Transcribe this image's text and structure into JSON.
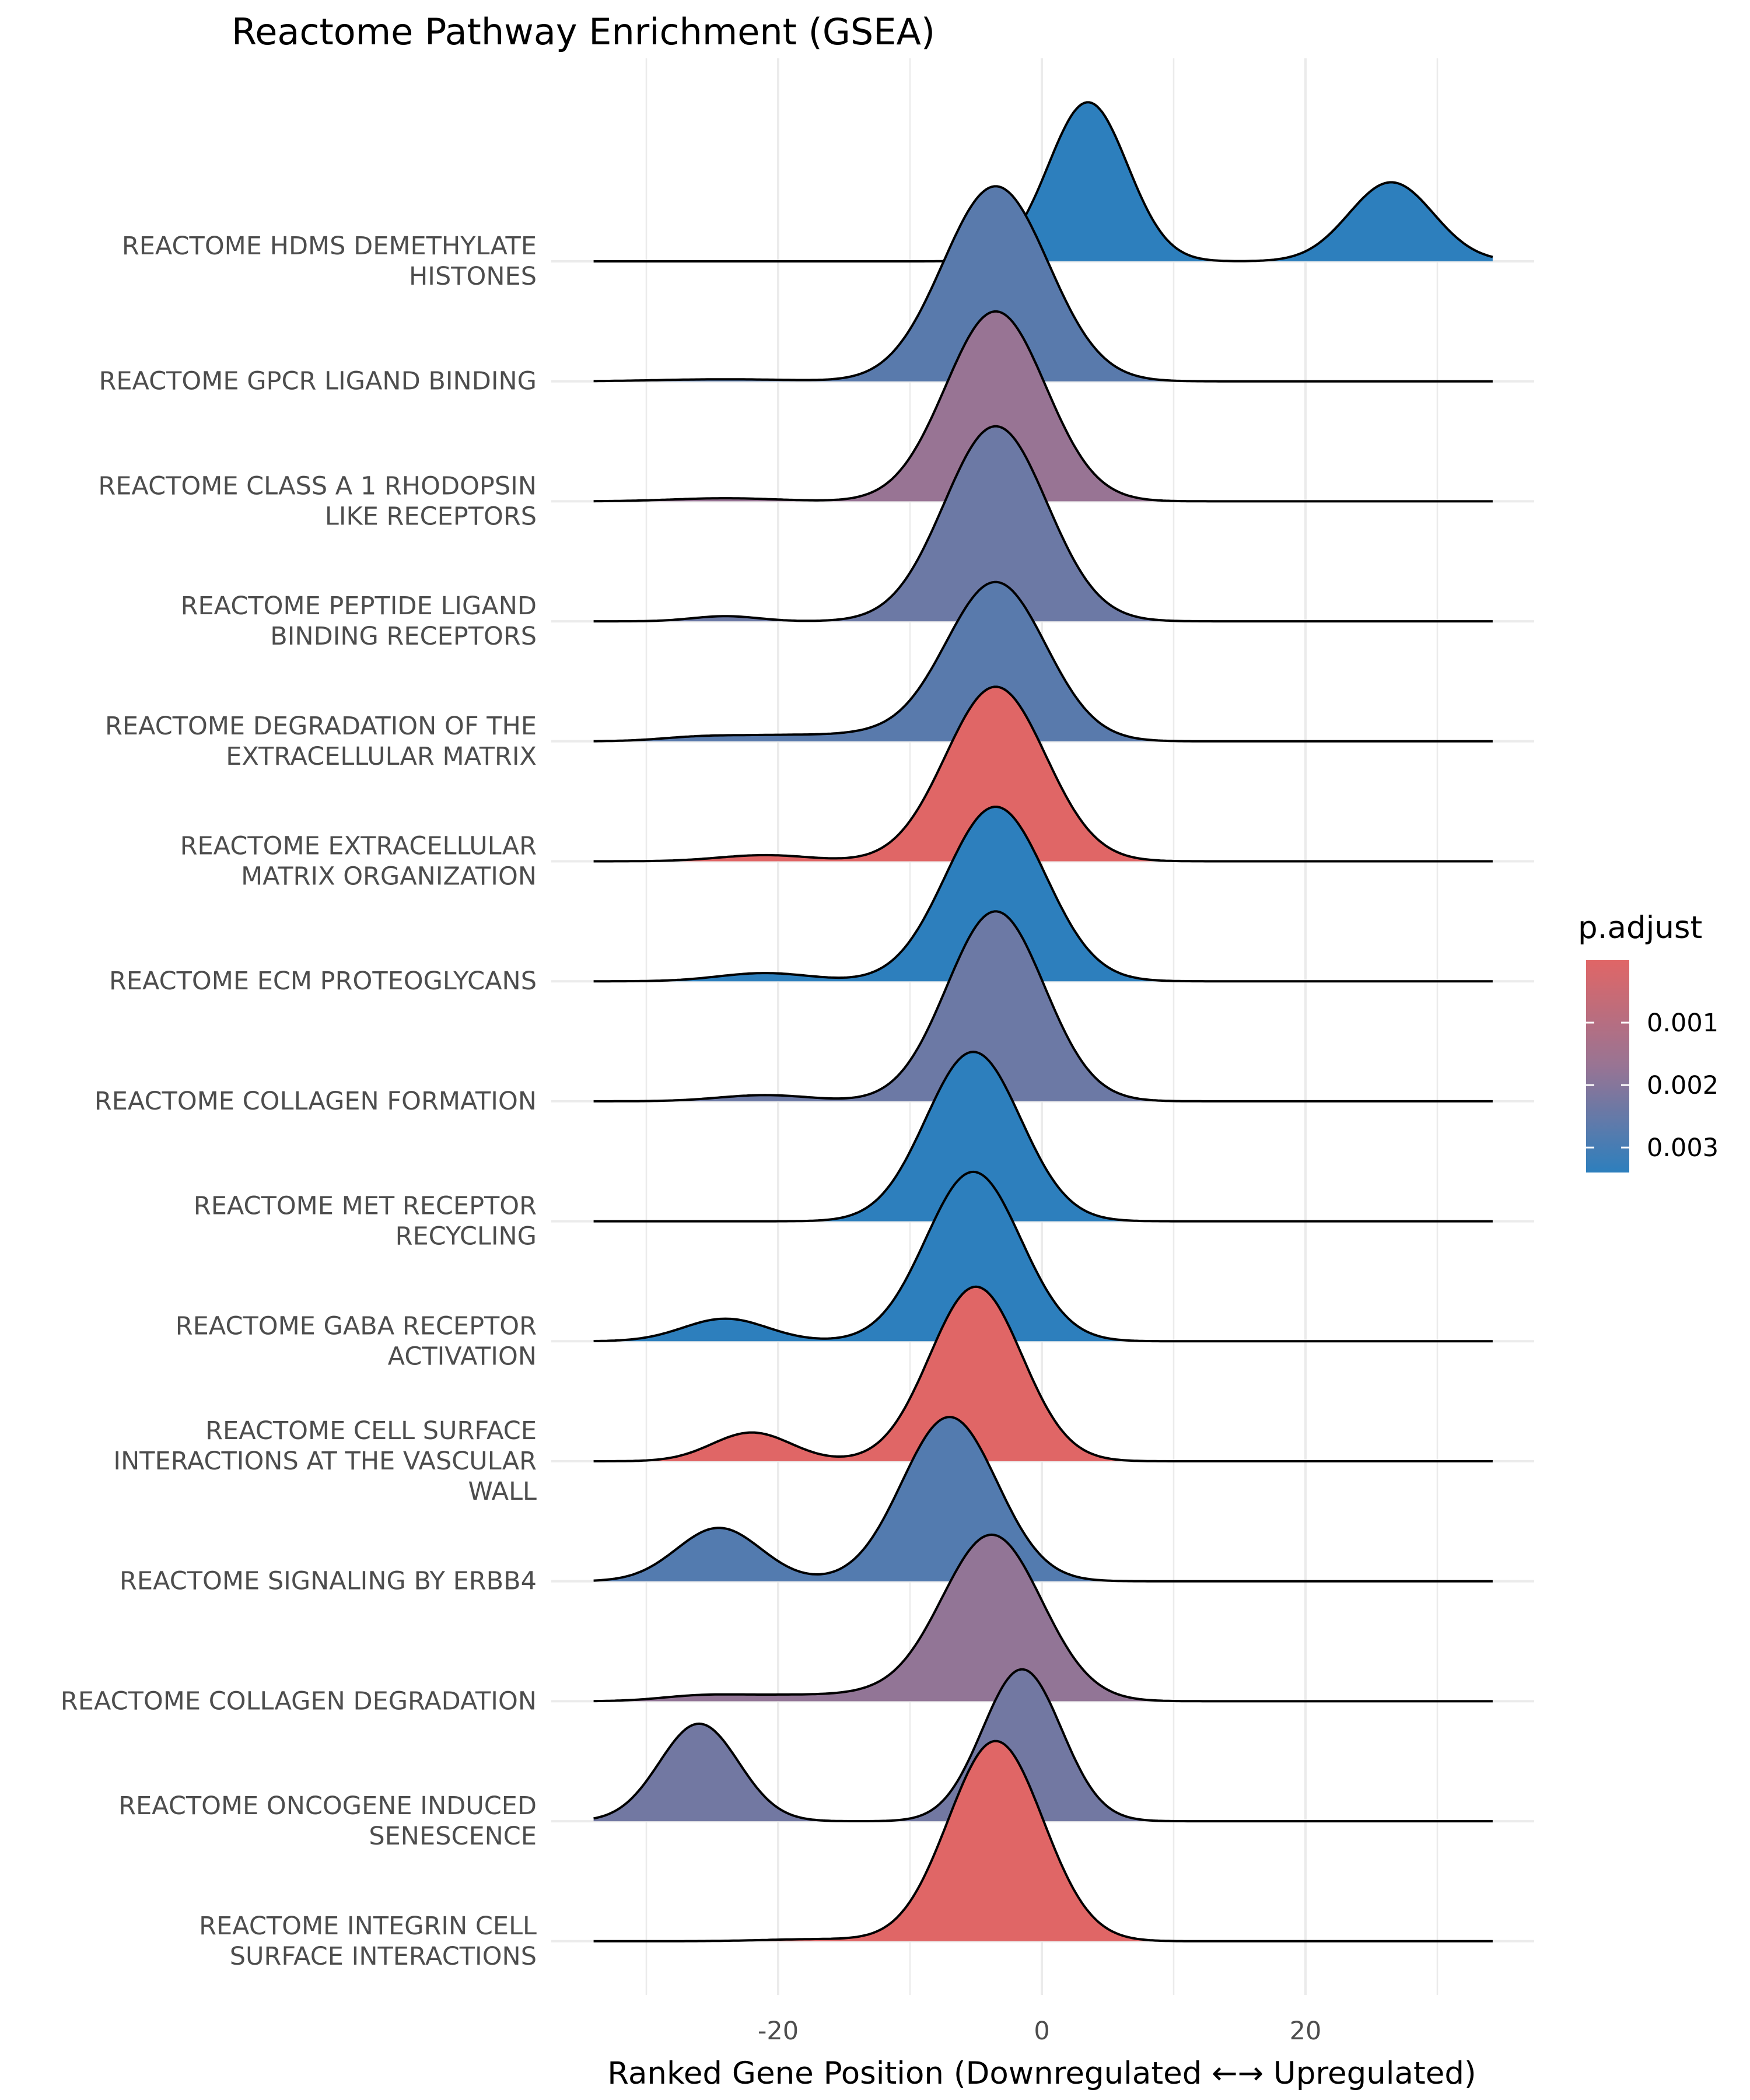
{
  "chart_data": {
    "type": "ridgeline",
    "title": "Reactome Pathway Enrichment (GSEA)",
    "xlabel": "Ranked Gene Position (Downregulated ←→ Upregulated)",
    "ylabel": "",
    "xlim": [
      -39,
      40
    ],
    "x_ticks": [
      -20,
      0,
      20
    ],
    "x_tick_labels": [
      "-20",
      "0",
      "20"
    ],
    "grid": true,
    "legend": {
      "title": "p.adjust",
      "placement": "right",
      "domain": [
        0.0,
        0.0034
      ],
      "ticks": [
        0.001,
        0.002,
        0.003
      ],
      "tick_labels": [
        "0.001",
        "0.002",
        "0.003"
      ],
      "color_low": "#e06666",
      "color_high": "#2d7fbd"
    },
    "series": [
      {
        "label": "REACTOME HDMS DEMETHYLATE HISTONES",
        "label_lines": [
          "REACTOME HDMS DEMETHYLATE",
          "HISTONES"
        ],
        "p_adjust": 0.0034,
        "components": [
          {
            "mu": 3.5,
            "sd": 3.0,
            "h": 1.55
          },
          {
            "mu": 26.5,
            "sd": 3.2,
            "h": 0.77
          }
        ]
      },
      {
        "label": "REACTOME GPCR LIGAND BINDING",
        "label_lines": [
          "REACTOME GPCR LIGAND BINDING"
        ],
        "p_adjust": 0.0027,
        "components": [
          {
            "mu": -3.5,
            "sd": 4.0,
            "h": 1.9
          },
          {
            "mu": -24,
            "sd": 5.0,
            "h": 0.02
          }
        ]
      },
      {
        "label": "REACTOME CLASS A 1 RHODOPSIN LIKE RECEPTORS",
        "label_lines": [
          "REACTOME CLASS A 1 RHODOPSIN",
          "LIKE RECEPTORS"
        ],
        "p_adjust": 0.0017,
        "components": [
          {
            "mu": -3.5,
            "sd": 3.8,
            "h": 1.85
          },
          {
            "mu": -24,
            "sd": 4.0,
            "h": 0.03
          }
        ]
      },
      {
        "label": "REACTOME PEPTIDE LIGAND BINDING RECEPTORS",
        "label_lines": [
          "REACTOME PEPTIDE LIGAND",
          "BINDING RECEPTORS"
        ],
        "p_adjust": 0.0024,
        "components": [
          {
            "mu": -3.5,
            "sd": 3.9,
            "h": 1.9
          },
          {
            "mu": -24,
            "sd": 2.5,
            "h": 0.05
          }
        ]
      },
      {
        "label": "REACTOME DEGRADATION OF THE EXTRACELLULAR MATRIX",
        "label_lines": [
          "REACTOME DEGRADATION OF THE",
          "EXTRACELLULAR MATRIX"
        ],
        "p_adjust": 0.0027,
        "components": [
          {
            "mu": -3.5,
            "sd": 3.8,
            "h": 1.55
          },
          {
            "mu": -13,
            "sd": 3.5,
            "h": 0.06
          },
          {
            "mu": -20,
            "sd": 3.5,
            "h": 0.05
          },
          {
            "mu": -26,
            "sd": 3.0,
            "h": 0.04
          }
        ]
      },
      {
        "label": "REACTOME EXTRACELLULAR MATRIX ORGANIZATION",
        "label_lines": [
          "REACTOME EXTRACELLULAR",
          "MATRIX ORGANIZATION"
        ],
        "p_adjust": 0.0,
        "components": [
          {
            "mu": -3.5,
            "sd": 3.8,
            "h": 1.7
          },
          {
            "mu": -21,
            "sd": 3.5,
            "h": 0.06
          }
        ]
      },
      {
        "label": "REACTOME ECM PROTEOGLYCANS",
        "label_lines": [
          "REACTOME ECM PROTEOGLYCANS"
        ],
        "p_adjust": 0.0034,
        "components": [
          {
            "mu": -3.5,
            "sd": 3.8,
            "h": 1.7
          },
          {
            "mu": -21,
            "sd": 3.5,
            "h": 0.08
          }
        ]
      },
      {
        "label": "REACTOME COLLAGEN FORMATION",
        "label_lines": [
          "REACTOME COLLAGEN FORMATION"
        ],
        "p_adjust": 0.0024,
        "components": [
          {
            "mu": -3.5,
            "sd": 3.7,
            "h": 1.85
          },
          {
            "mu": -21,
            "sd": 3.5,
            "h": 0.06
          }
        ]
      },
      {
        "label": "REACTOME MET RECEPTOR RECYCLING",
        "label_lines": [
          "REACTOME MET RECEPTOR",
          "RECYCLING"
        ],
        "p_adjust": 0.0034,
        "components": [
          {
            "mu": -5.2,
            "sd": 3.6,
            "h": 1.65
          }
        ]
      },
      {
        "label": "REACTOME GABA RECEPTOR ACTIVATION",
        "label_lines": [
          "REACTOME GABA RECEPTOR",
          "ACTIVATION"
        ],
        "p_adjust": 0.0034,
        "components": [
          {
            "mu": -5.2,
            "sd": 3.6,
            "h": 1.65
          },
          {
            "mu": -24,
            "sd": 3.2,
            "h": 0.22
          }
        ]
      },
      {
        "label": "REACTOME CELL SURFACE INTERACTIONS AT THE VASCULAR WALL",
        "label_lines": [
          "REACTOME CELL SURFACE",
          "INTERACTIONS AT THE VASCULAR",
          "WALL"
        ],
        "p_adjust": 0.0,
        "components": [
          {
            "mu": -5.0,
            "sd": 3.5,
            "h": 1.7
          },
          {
            "mu": -22,
            "sd": 3.0,
            "h": 0.28
          }
        ]
      },
      {
        "label": "REACTOME SIGNALING BY ERBB4",
        "label_lines": [
          "REACTOME SIGNALING BY ERBB4"
        ],
        "p_adjust": 0.0028,
        "components": [
          {
            "mu": -7.0,
            "sd": 3.6,
            "h": 1.6
          },
          {
            "mu": -24.5,
            "sd": 3.2,
            "h": 0.52
          }
        ]
      },
      {
        "label": "REACTOME COLLAGEN DEGRADATION",
        "label_lines": [
          "REACTOME COLLAGEN DEGRADATION"
        ],
        "p_adjust": 0.0018,
        "components": [
          {
            "mu": -3.8,
            "sd": 3.8,
            "h": 1.62
          },
          {
            "mu": -13,
            "sd": 3.5,
            "h": 0.06
          },
          {
            "mu": -20,
            "sd": 3.5,
            "h": 0.05
          },
          {
            "mu": -26,
            "sd": 3.0,
            "h": 0.05
          }
        ]
      },
      {
        "label": "REACTOME ONCOGENE INDUCED SENESCENCE",
        "label_lines": [
          "REACTOME ONCOGENE INDUCED",
          "SENESCENCE"
        ],
        "p_adjust": 0.0023,
        "components": [
          {
            "mu": -1.5,
            "sd": 3.0,
            "h": 1.48
          },
          {
            "mu": -26,
            "sd": 3.0,
            "h": 0.95
          }
        ]
      },
      {
        "label": "REACTOME INTEGRIN CELL SURFACE INTERACTIONS",
        "label_lines": [
          "REACTOME INTEGRIN CELL",
          "SURFACE INTERACTIONS"
        ],
        "p_adjust": 0.0,
        "components": [
          {
            "mu": -3.5,
            "sd": 3.6,
            "h": 1.95
          },
          {
            "mu": -17,
            "sd": 4.0,
            "h": 0.02
          }
        ]
      }
    ]
  }
}
